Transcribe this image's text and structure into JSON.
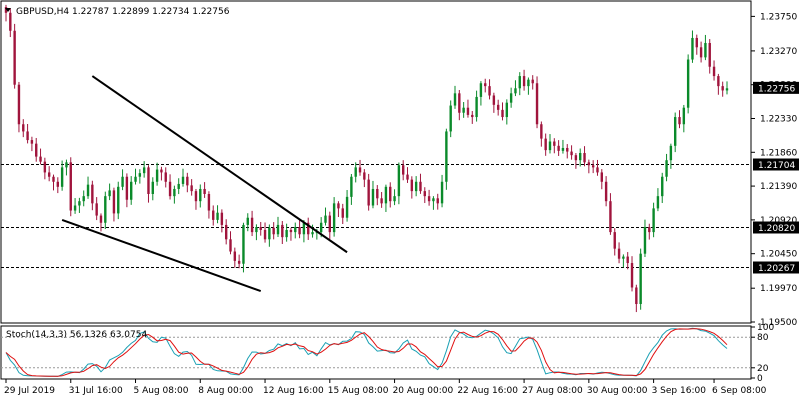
{
  "header": {
    "symbol": "GBPUSD,H4",
    "ohlc": "1.22787 1.22899 1.22734 1.22756"
  },
  "chart_data": [
    {
      "type": "candlestick",
      "symbol": "GBPUSD",
      "timeframe": "H4",
      "y_ticks": [
        "1.23750",
        "1.23270",
        "1.22800",
        "1.22330",
        "1.21860",
        "1.21390",
        "1.20920",
        "1.20450",
        "1.19970",
        "1.19500"
      ],
      "ylim": [
        1.195,
        1.2395
      ],
      "x_ticks": [
        "29 Jul 2019",
        "31 Jul 16:00",
        "5 Aug 08:00",
        "8 Aug 00:00",
        "12 Aug 16:00",
        "15 Aug 08:00",
        "20 Aug 00:00",
        "22 Aug 16:00",
        "27 Aug 08:00",
        "30 Aug 00:00",
        "3 Sep 16:00",
        "6 Sep 08:00"
      ],
      "current_price": {
        "value": 1.22756,
        "label": "1.22756",
        "color": "#000000"
      },
      "levels": [
        {
          "value": 1.21704,
          "label": "1.21704"
        },
        {
          "value": 1.2082,
          "label": "1.20820"
        },
        {
          "value": 1.20267,
          "label": "1.20267"
        }
      ],
      "bull_color": "#0a8a2a",
      "bear_color": "#a0143c",
      "trendlines": [
        {
          "from": [
            20,
            1.2292
          ],
          "to": [
            79,
            1.2047
          ]
        },
        {
          "from": [
            13,
            1.2092
          ],
          "to": [
            59,
            1.1993
          ]
        }
      ],
      "close": [
        1.238,
        1.2355,
        1.228,
        1.2225,
        1.2215,
        1.2203,
        1.2198,
        1.218,
        1.2173,
        1.2158,
        1.2152,
        1.2145,
        1.2138,
        1.2165,
        1.2172,
        1.2105,
        1.2112,
        1.2118,
        1.2125,
        1.2141,
        1.2115,
        1.2098,
        1.2088,
        1.2125,
        1.2133,
        1.2101,
        1.2138,
        1.2152,
        1.212,
        1.2145,
        1.2152,
        1.2157,
        1.2165,
        1.2128,
        1.2145,
        1.2162,
        1.2158,
        1.2145,
        1.2125,
        1.2135,
        1.2142,
        1.2152,
        1.214,
        1.2132,
        1.2118,
        1.2135,
        1.2128,
        1.2105,
        1.2092,
        1.2102,
        1.2085,
        1.2065,
        1.2048,
        1.2035,
        1.2031,
        1.2085,
        1.2095,
        1.2075,
        1.2082,
        1.2078,
        1.2065,
        1.2081,
        1.2072,
        1.2085,
        1.2068,
        1.2078,
        1.2075,
        1.2082,
        1.2072,
        1.2088,
        1.2072,
        1.2075,
        1.2075,
        1.2088,
        1.2098,
        1.2075,
        1.2115,
        1.2108,
        1.2095,
        1.2124,
        1.2152,
        1.2165,
        1.2158,
        1.2148,
        1.2112,
        1.2135,
        1.2122,
        1.2115,
        1.2138,
        1.2118,
        1.2125,
        1.2168,
        1.2155,
        1.2148,
        1.2132,
        1.2145,
        1.2132,
        1.2125,
        1.2118,
        1.2122,
        1.2115,
        1.2145,
        1.2215,
        1.2251,
        1.2268,
        1.2241,
        1.2248,
        1.2238,
        1.2235,
        1.2263,
        1.2282,
        1.2278,
        1.2265,
        1.2252,
        1.2245,
        1.2235,
        1.2255,
        1.2268,
        1.2275,
        1.2292,
        1.2278,
        1.2287,
        1.2282,
        1.2225,
        1.2205,
        1.2189,
        1.2201,
        1.2195,
        1.2188,
        1.2192,
        1.2187,
        1.2182,
        1.2175,
        1.2185,
        1.2172,
        1.2168,
        1.2165,
        1.2158,
        1.2145,
        1.2118,
        1.2075,
        1.2052,
        1.2038,
        1.2041,
        1.2032,
        1.1998,
        1.1975,
        1.2045,
        1.2082,
        1.2075,
        1.2108,
        1.2125,
        1.2152,
        1.2175,
        1.2195,
        1.2235,
        1.2225,
        1.2248,
        1.2315,
        1.2345,
        1.2332,
        1.2318,
        1.2338,
        1.2305,
        1.2292,
        1.2278,
        1.2272,
        1.2275
      ],
      "stoch_indicator": {
        "label": "Stoch(14,3,3) 56.1326 63.0754",
        "k_value": 56.1326,
        "d_value": 63.0754,
        "levels": [
          100,
          80,
          20,
          0
        ],
        "k_color": "#1aa0b4",
        "d_color": "#e01010"
      }
    }
  ]
}
